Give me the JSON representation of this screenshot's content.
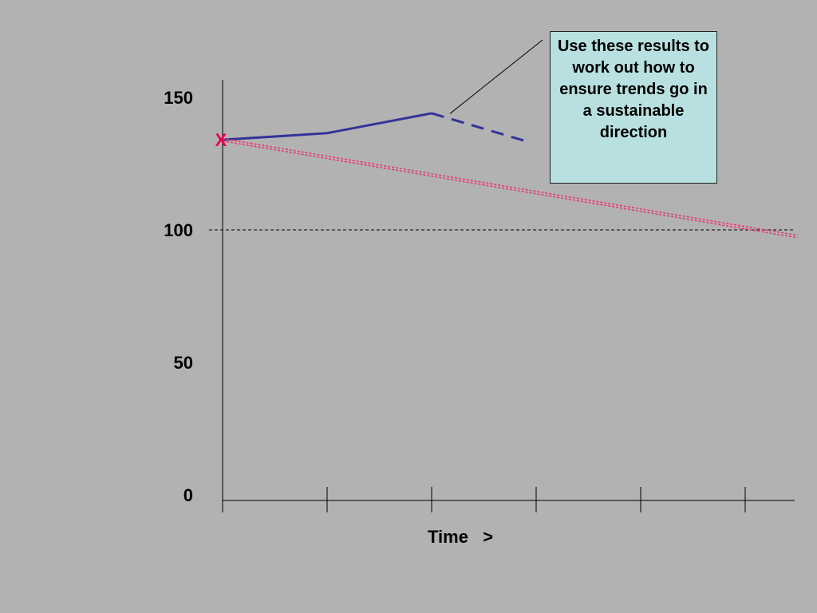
{
  "chart_data": {
    "type": "line",
    "title": "",
    "xlabel": "Time   >",
    "ylabel": "",
    "ylim": [
      0,
      150
    ],
    "yticks": [
      "0",
      "50",
      "100",
      "150"
    ],
    "x_tick_count": 6,
    "grid": false,
    "reference_line": {
      "y": 100,
      "style": "dashed",
      "color": "#000000"
    },
    "series": [
      {
        "values": [
          [
            0,
            134
          ],
          [
            1,
            136.5
          ],
          [
            2,
            144
          ]
        ],
        "color": "#333399",
        "style": "solid"
      },
      {
        "values": [
          [
            2,
            144
          ],
          [
            2.9,
            133.5
          ]
        ],
        "color": "#333399",
        "style": "dashed"
      },
      {
        "values": [
          [
            0,
            134
          ],
          [
            5.5,
            97.5
          ]
        ],
        "color": "#e8386a",
        "style": "double-dotted"
      }
    ],
    "start_marker": {
      "label": "X",
      "x": 0,
      "y": 134,
      "color": "#e8004c"
    },
    "annotation": {
      "text": "Use these results to work out how to ensure trends go in a sustainable direction",
      "points_to": [
        2.1,
        147.5
      ]
    }
  }
}
